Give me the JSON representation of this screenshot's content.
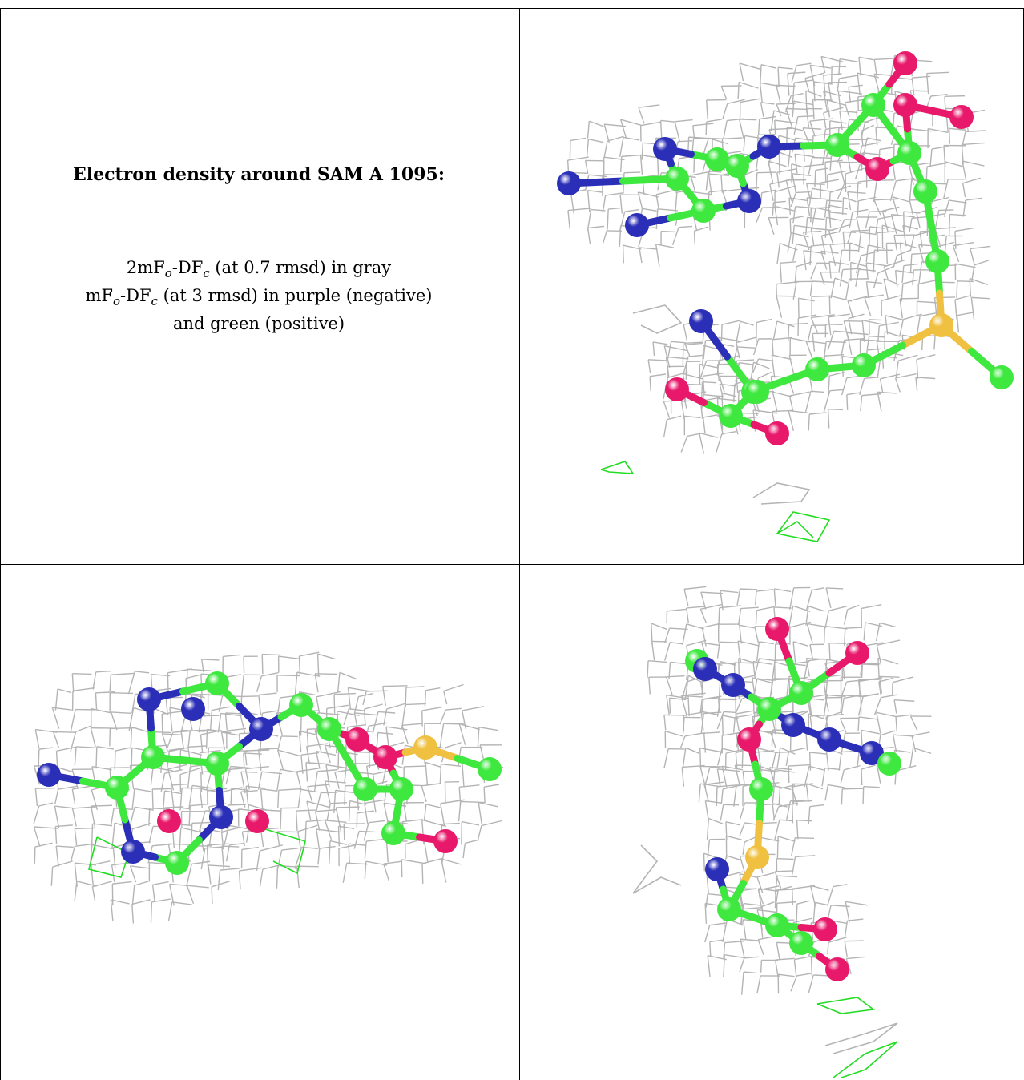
{
  "caption": {
    "title": "Electron density around SAM A 1095:",
    "line1": {
      "pre": "2mF",
      "sub1": "o",
      "mid": "-DF",
      "sub2": "c",
      "post": " (at 0.7 rmsd) in gray"
    },
    "line2": {
      "pre": "mF",
      "sub1": "o",
      "mid": "-DF",
      "sub2": "c",
      "post": " (at 3 rmsd) in purple (negative)"
    },
    "line3": "and green (positive)"
  },
  "colors": {
    "mesh_gray": "#b4b4b4",
    "carbon_green": "#3ee83e",
    "nitrogen_blue": "#2b2fb8",
    "oxygen_red": "#e8186a",
    "sulfur_yellow": "#f0c040",
    "difference_positive": "#22dd22"
  }
}
